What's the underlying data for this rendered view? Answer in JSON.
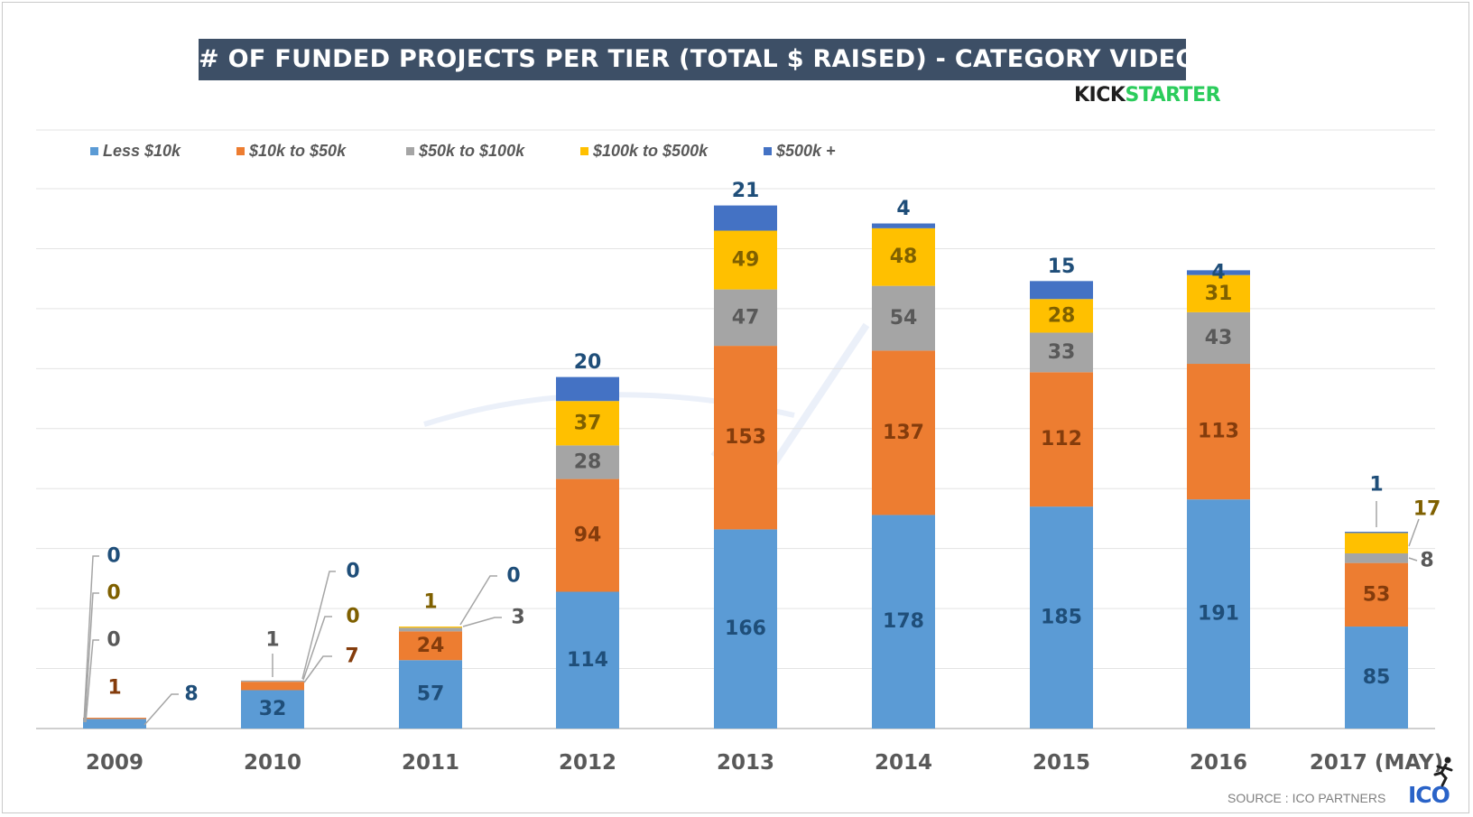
{
  "chart_data": {
    "type": "bar",
    "stacked": true,
    "title": "# OF FUNDED PROJECTS PER TIER (TOTAL $ RAISED) - CATEGORY VIDEO GAMES",
    "categories": [
      "2009",
      "2010",
      "2011",
      "2012",
      "2013",
      "2014",
      "2015",
      "2016",
      "2017 (MAY)"
    ],
    "series": [
      {
        "name": "Less $10k",
        "color": "#5b9bd5",
        "label_color": "#1f4e79",
        "values": [
          8,
          32,
          57,
          114,
          166,
          178,
          185,
          191,
          85
        ]
      },
      {
        "name": "$10k to $50k",
        "color": "#ed7d31",
        "label_color": "#843c0c",
        "values": [
          1,
          7,
          24,
          94,
          153,
          137,
          112,
          113,
          53
        ]
      },
      {
        "name": "$50k to $100k",
        "color": "#a5a5a5",
        "label_color": "#595959",
        "values": [
          0,
          1,
          3,
          28,
          47,
          54,
          33,
          43,
          8
        ]
      },
      {
        "name": "$100k to $500k",
        "color": "#ffc000",
        "label_color": "#7f6000",
        "values": [
          0,
          0,
          1,
          37,
          49,
          48,
          28,
          31,
          17
        ]
      },
      {
        "name": "$500k +",
        "color": "#4472c4",
        "label_color": "#1f4e79",
        "values": [
          0,
          0,
          0,
          20,
          21,
          4,
          15,
          4,
          1
        ]
      }
    ],
    "ylim": [
      0,
      450
    ],
    "grid": true,
    "legend_position": "top"
  },
  "brand": {
    "kickstarter_left": "KICK",
    "kickstarter_right": "STARTER"
  },
  "footer": {
    "source": "SOURCE : ICO PARTNERS",
    "logo": "ICO"
  },
  "icons": {
    "runner": "runner-icon"
  }
}
